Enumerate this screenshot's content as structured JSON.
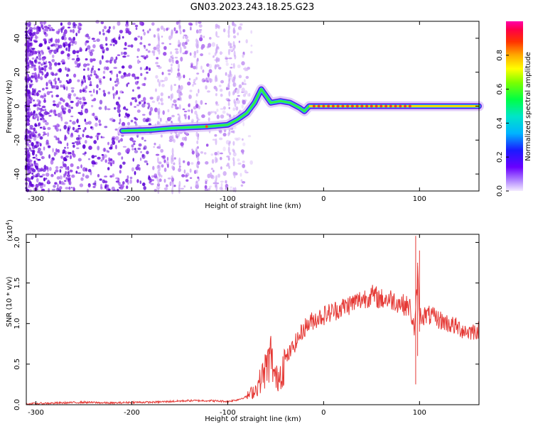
{
  "title": "GN03.2023.243.18.25.G23",
  "colors": {
    "accent_signal": "#e53935",
    "scatter_base": "#7a1fe0",
    "axis": "#000000"
  },
  "chart_data": [
    {
      "type": "heatmap",
      "xlabel": "Height of straight line (km)",
      "ylabel": "Frequency (Hz)",
      "xlim": [
        -310,
        162
      ],
      "ylim": [
        -50,
        50
      ],
      "xticks": [
        -300,
        -200,
        -100,
        0,
        100
      ],
      "yticks": [
        -40,
        -20,
        0,
        20,
        40
      ],
      "colorbar": {
        "label": "Normalized spectral amplitude",
        "range": [
          0.0,
          1.0
        ],
        "ticks": [
          "0.0",
          "0.2",
          "0.4",
          "0.6",
          "0.8"
        ],
        "colormap": "rainbow"
      },
      "ridge_track": [
        {
          "x": -210,
          "y": -14.5
        },
        {
          "x": -180,
          "y": -14
        },
        {
          "x": -160,
          "y": -13
        },
        {
          "x": -140,
          "y": -12.5
        },
        {
          "x": -120,
          "y": -12
        },
        {
          "x": -100,
          "y": -11
        },
        {
          "x": -90,
          "y": -8
        },
        {
          "x": -80,
          "y": -4
        },
        {
          "x": -72,
          "y": 2
        },
        {
          "x": -65,
          "y": 10
        },
        {
          "x": -60,
          "y": 6
        },
        {
          "x": -55,
          "y": 2
        },
        {
          "x": -45,
          "y": 3
        },
        {
          "x": -35,
          "y": 2
        },
        {
          "x": -25,
          "y": -1
        },
        {
          "x": -20,
          "y": -3
        },
        {
          "x": -15,
          "y": 0
        },
        {
          "x": 0,
          "y": 0
        },
        {
          "x": 50,
          "y": 0
        },
        {
          "x": 100,
          "y": 0
        },
        {
          "x": 162,
          "y": 0
        }
      ]
    },
    {
      "type": "line",
      "xlabel": "Height of straight line (km)",
      "ylabel": "SNR (10 * v/v)",
      "yscale_label": "(x10",
      "yscale_exp": "4",
      "xlim": [
        -310,
        162
      ],
      "ylim": [
        0,
        2.1
      ],
      "xticks": [
        -300,
        -200,
        -100,
        0,
        100
      ],
      "yticks": [
        "0.0",
        "0.5",
        "1.0",
        "1.5",
        "2.0"
      ],
      "series": [
        {
          "color": "#e53935",
          "x": [
            -310,
            -280,
            -250,
            -220,
            -200,
            -180,
            -160,
            -140,
            -120,
            -100,
            -90,
            -80,
            -70,
            -60,
            -55,
            -50,
            -45,
            -40,
            -30,
            -20,
            -10,
            0,
            10,
            20,
            30,
            40,
            50,
            60,
            70,
            80,
            90,
            95,
            98,
            100,
            110,
            120,
            130,
            140,
            150,
            162
          ],
          "y": [
            0.01,
            0.02,
            0.03,
            0.02,
            0.03,
            0.03,
            0.04,
            0.05,
            0.05,
            0.04,
            0.06,
            0.1,
            0.2,
            0.45,
            0.6,
            0.3,
            0.4,
            0.55,
            0.75,
            0.95,
            1.05,
            1.1,
            1.15,
            1.2,
            1.25,
            1.3,
            1.35,
            1.3,
            1.3,
            1.25,
            1.2,
            0.9,
            1.6,
            1.1,
            1.1,
            1.05,
            1.0,
            0.95,
            0.9,
            0.92
          ]
        }
      ]
    }
  ]
}
